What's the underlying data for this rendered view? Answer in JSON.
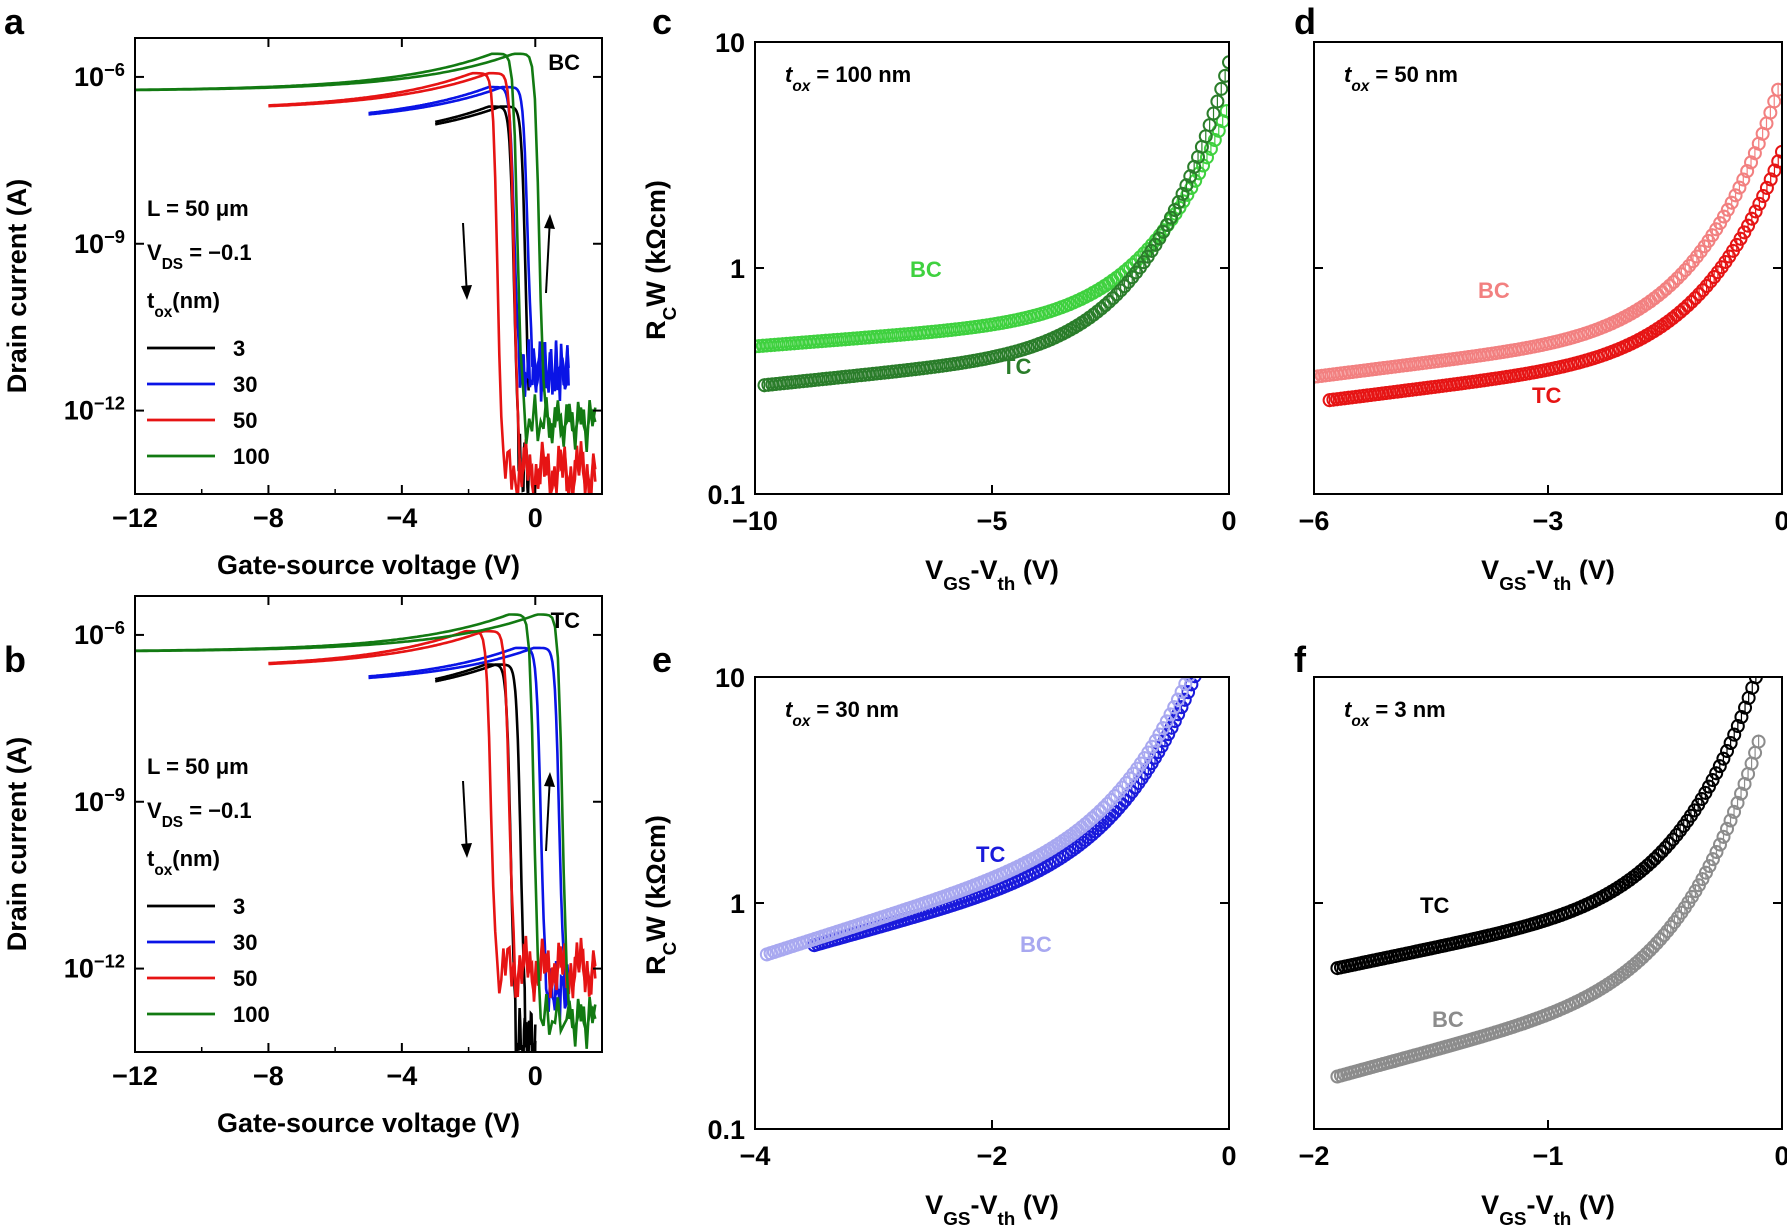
{
  "figure": {
    "panels": [
      {
        "id": "a",
        "letter": "a",
        "type": "line",
        "corner_label": "BC",
        "xlabel": "Gate-source voltage (V)",
        "ylabel": "Drain current (A)",
        "xlim": [
          -12,
          2
        ],
        "x_ticks": [
          -12,
          -8,
          -4,
          0
        ],
        "x_tick_labels": [
          "−12",
          "−8",
          "−4",
          "0"
        ],
        "ylog_range": [
          -13.5,
          -5.3
        ],
        "y_ticks": [
          -6,
          -9,
          -12
        ],
        "y_tick_base": "10",
        "y_tick_exps": [
          "−6",
          "−9",
          "−12"
        ],
        "annotations": {
          "length": "L = 50 μm",
          "vds_prefix": "V",
          "vds_sub": "DS",
          "vds_value": " = −0.1",
          "tox_prefix": "t",
          "tox_sub": "ox",
          "tox_unit": "(nm)"
        },
        "legend": [
          {
            "label": "3",
            "color": "#000000"
          },
          {
            "label": "30",
            "color": "#0a14e6"
          },
          {
            "label": "50",
            "color": "#e61414"
          },
          {
            "label": "100",
            "color": "#127a12"
          }
        ],
        "series": [
          {
            "name": "3",
            "color": "#000000",
            "x_start": -3.0,
            "x_drop": -0.5,
            "on_log": -6.3,
            "x_end": -0.2,
            "off_log": -13.0,
            "hysteresis": 0.35
          },
          {
            "name": "30",
            "color": "#0a14e6",
            "x_start": -5.0,
            "x_drop": -0.5,
            "on_log": -5.95,
            "x_end": 1.0,
            "off_log": -11.3,
            "hysteresis": 0.4
          },
          {
            "name": "50",
            "color": "#e61414",
            "x_start": -8.0,
            "x_drop": -1.0,
            "on_log": -5.7,
            "x_end": 1.8,
            "off_log": -13.1,
            "hysteresis": 0.5
          },
          {
            "name": "100",
            "color": "#127a12",
            "x_start": -12.0,
            "x_drop": -0.4,
            "on_log": -5.35,
            "x_end": 1.8,
            "off_log": -12.2,
            "hysteresis": 0.65
          }
        ]
      },
      {
        "id": "b",
        "letter": "b",
        "type": "line",
        "corner_label": "TC",
        "xlabel": "Gate-source voltage (V)",
        "ylabel": "Drain current (A)",
        "xlim": [
          -12,
          2
        ],
        "x_ticks": [
          -12,
          -8,
          -4,
          0
        ],
        "x_tick_labels": [
          "−12",
          "−8",
          "−4",
          "0"
        ],
        "ylog_range": [
          -13.5,
          -5.3
        ],
        "y_ticks": [
          -6,
          -9,
          -12
        ],
        "y_tick_base": "10",
        "y_tick_exps": [
          "−6",
          "−9",
          "−12"
        ],
        "annotations": {
          "length": "L = 50 μm",
          "vds_prefix": "V",
          "vds_sub": "DS",
          "vds_value": " = −0.1",
          "tox_prefix": "t",
          "tox_sub": "ox",
          "tox_unit": "(nm)"
        },
        "legend": [
          {
            "label": "3",
            "color": "#000000"
          },
          {
            "label": "30",
            "color": "#0a14e6"
          },
          {
            "label": "50",
            "color": "#e61414"
          },
          {
            "label": "100",
            "color": "#127a12"
          }
        ],
        "series": [
          {
            "name": "3",
            "color": "#000000",
            "x_start": -3.0,
            "x_drop": -0.6,
            "on_log": -6.3,
            "x_end": 0.0,
            "off_log": -13.3,
            "hysteresis": 0.3
          },
          {
            "name": "30",
            "color": "#0a14e6",
            "x_start": -5.0,
            "x_drop": 0.3,
            "on_log": -6.0,
            "x_end": 1.0,
            "off_log": -12.4,
            "hysteresis": 0.55
          },
          {
            "name": "50",
            "color": "#e61414",
            "x_start": -8.0,
            "x_drop": -1.2,
            "on_log": -5.7,
            "x_end": 1.8,
            "off_log": -12.0,
            "hysteresis": 0.55
          },
          {
            "name": "100",
            "color": "#127a12",
            "x_start": -12.0,
            "x_drop": 0.1,
            "on_log": -5.4,
            "x_end": 1.8,
            "off_log": -12.9,
            "hysteresis": 0.85
          }
        ]
      },
      {
        "id": "c",
        "letter": "c",
        "type": "scatter",
        "xlabel_main": "V",
        "xlabel_sub1": "GS",
        "xlabel_mid": "-V",
        "xlabel_sub2": "th",
        "xlabel_unit": " (V)",
        "ylabel_main": "R",
        "ylabel_sub": "C",
        "ylabel_rest": "W (kΩcm)",
        "xlim": [
          -10,
          0
        ],
        "x_ticks": [
          -10,
          -5,
          0
        ],
        "x_tick_labels": [
          "−10",
          "−5",
          "0"
        ],
        "ylim": [
          0.1,
          10
        ],
        "y_ticks": [
          0.1,
          1,
          10
        ],
        "y_tick_labels": [
          "0.1",
          "1",
          "10"
        ],
        "tox_label_prefix": "t",
        "tox_label_sub": "ox",
        "tox_label_value": " = 100 nm",
        "tox_label_color": "#1a8a1a",
        "series": [
          {
            "name": "BC",
            "color": "#3fd13f",
            "x_start": -10.0,
            "x_end": -0.05,
            "y0": 0.45,
            "b": 0.38,
            "c": 2.08
          },
          {
            "name": "TC",
            "color": "#2a7d2a",
            "x_start": -9.8,
            "x_end": 0.0,
            "y0": 0.3,
            "b": 0.5,
            "c": 2.8
          }
        ]
      },
      {
        "id": "d",
        "letter": "d",
        "type": "scatter",
        "xlabel_main": "V",
        "xlabel_sub1": "GS",
        "xlabel_mid": "-V",
        "xlabel_sub2": "th",
        "xlabel_unit": " (V)",
        "ylabel_main": "",
        "ylabel_sub": "",
        "ylabel_rest": "",
        "xlim": [
          -6,
          0
        ],
        "x_ticks": [
          -6,
          -3,
          0
        ],
        "x_tick_labels": [
          "−6",
          "−3",
          "0"
        ],
        "ylim": [
          0.1,
          10
        ],
        "y_ticks": [
          0.1,
          1,
          10
        ],
        "y_tick_labels": [
          "",
          "",
          ""
        ],
        "tox_label_prefix": "t",
        "tox_label_sub": "ox",
        "tox_label_value": " = 50 nm",
        "tox_label_color": "#e61414",
        "series": [
          {
            "name": "BC",
            "color": "#f28080",
            "x_start": -6.0,
            "x_end": -0.05,
            "y0": 0.33,
            "b": 0.6,
            "c": 2.45
          },
          {
            "name": "TC",
            "color": "#e61414",
            "x_start": -5.8,
            "x_end": 0.0,
            "y0": 0.255,
            "b": 0.6,
            "c": 1.95
          }
        ]
      },
      {
        "id": "e",
        "letter": "e",
        "type": "scatter",
        "xlabel_main": "V",
        "xlabel_sub1": "GS",
        "xlabel_mid": "-V",
        "xlabel_sub2": "th",
        "xlabel_unit": " (V)",
        "ylabel_main": "R",
        "ylabel_sub": "C",
        "ylabel_rest": "W (kΩcm)",
        "xlim": [
          -4,
          0
        ],
        "x_ticks": [
          -4,
          -2,
          0
        ],
        "x_tick_labels": [
          "−4",
          "−2",
          "0"
        ],
        "ylim": [
          0.1,
          10
        ],
        "y_ticks": [
          0.1,
          1,
          10
        ],
        "y_tick_labels": [
          "0.1",
          "1",
          "10"
        ],
        "tox_label_prefix": "t",
        "tox_label_sub": "ox",
        "tox_label_value": " = 30 nm",
        "tox_label_color": "#0a14e6",
        "series": [
          {
            "name": "TC",
            "color": "#1a1adb",
            "x_start": -3.5,
            "x_end": -0.15,
            "y0": 0.55,
            "b": 1.35,
            "c": 2.6
          },
          {
            "name": "BC",
            "color": "#a8a8f0",
            "x_start": -3.9,
            "x_end": -0.15,
            "y0": 0.57,
            "b": 1.55,
            "c": 2.48
          }
        ]
      },
      {
        "id": "f",
        "letter": "f",
        "type": "scatter",
        "xlabel_main": "V",
        "xlabel_sub1": "GS",
        "xlabel_mid": "-V",
        "xlabel_sub2": "th",
        "xlabel_unit": " (V)",
        "ylabel_main": "",
        "ylabel_sub": "",
        "ylabel_rest": "",
        "xlim": [
          -2,
          0
        ],
        "x_ticks": [
          -2,
          -1,
          0
        ],
        "x_tick_labels": [
          "−2",
          "−1",
          "0"
        ],
        "ylim": [
          0.1,
          10
        ],
        "y_ticks": [
          0.1,
          1,
          10
        ],
        "y_tick_labels": [
          "",
          "",
          ""
        ],
        "tox_label_prefix": "t",
        "tox_label_sub": "ox",
        "tox_label_value": " = 3 nm",
        "tox_label_color": "#000000",
        "series": [
          {
            "name": "TC",
            "color": "#000000",
            "x_start": -1.9,
            "x_end": -0.05,
            "y0": 0.49,
            "b": 1.0,
            "c": 2.92
          },
          {
            "name": "BC",
            "color": "#8c8c8c",
            "x_start": -1.9,
            "x_end": -0.1,
            "y0": 0.16,
            "b": 1.3,
            "c": 3.05
          }
        ]
      }
    ]
  }
}
